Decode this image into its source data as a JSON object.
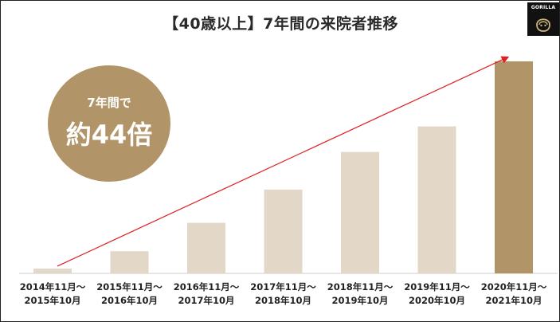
{
  "title": "【40歳以上】7年間の来院者推移",
  "logo": {
    "text": "GORILLA",
    "mark": "gorilla-logo-icon"
  },
  "badge": {
    "line1": "7年間で",
    "line2": "約44倍"
  },
  "colors": {
    "bar": "#e3d8c7",
    "bar_highlight": "#b19467",
    "arrow": "#e02020",
    "badge": "#b19467"
  },
  "chart_data": {
    "type": "bar",
    "categories": [
      [
        "2014年11月～",
        "2015年10月"
      ],
      [
        "2015年11月～",
        "2016年10月"
      ],
      [
        "2016年11月～",
        "2017年10月"
      ],
      [
        "2017年11月～",
        "2018年10月"
      ],
      [
        "2018年11月～",
        "2019年10月"
      ],
      [
        "2019年11月～",
        "2020年10月"
      ],
      [
        "2020年11月～",
        "2021年10月"
      ]
    ],
    "values": [
      1,
      4.6,
      10.5,
      17.4,
      25.2,
      30.5,
      44
    ],
    "highlight_index": 6,
    "ylim": [
      0,
      46
    ],
    "title": "【40歳以上】7年間の来院者推移",
    "xlabel": "",
    "ylabel": "",
    "grid": false,
    "trend_arrow": true
  }
}
